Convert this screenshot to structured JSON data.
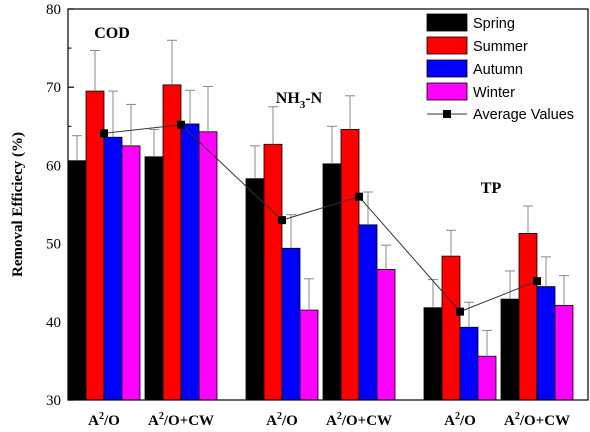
{
  "chart_data": {
    "type": "bar",
    "ylabel": "Removal Efficiecy (%)",
    "ylim": [
      30,
      80
    ],
    "yticks": [
      "30",
      "40",
      "50",
      "60",
      "70",
      "80"
    ],
    "grid": false,
    "legend_position": "top-right",
    "groups": [
      {
        "label": "COD",
        "label_sub": "",
        "label_suffix": ""
      },
      {
        "label": "NH",
        "label_sub": "3",
        "label_suffix": "-N"
      },
      {
        "label": "TP",
        "label_sub": "",
        "label_suffix": ""
      }
    ],
    "categories": [
      {
        "base": "A",
        "sup": "2",
        "suffix": "/O"
      },
      {
        "base": "A",
        "sup": "2",
        "suffix": "/O+CW"
      },
      {
        "base": "A",
        "sup": "2",
        "suffix": "/O"
      },
      {
        "base": "A",
        "sup": "2",
        "suffix": "/O+CW"
      },
      {
        "base": "A",
        "sup": "2",
        "suffix": "/O"
      },
      {
        "base": "A",
        "sup": "2",
        "suffix": "/O+CW"
      }
    ],
    "series": [
      {
        "name": "Spring",
        "color": "#000000",
        "values": [
          60.6,
          61.1,
          58.3,
          60.2,
          41.8,
          42.9
        ],
        "errors": [
          3.2,
          3.5,
          4.2,
          4.8,
          3.6,
          3.6
        ]
      },
      {
        "name": "Summer",
        "color": "#ff0000",
        "values": [
          69.5,
          70.3,
          62.7,
          64.6,
          48.4,
          51.3
        ],
        "errors": [
          5.2,
          5.7,
          4.8,
          4.3,
          3.3,
          3.5
        ]
      },
      {
        "name": "Autumn",
        "color": "#0000ff",
        "values": [
          63.6,
          65.3,
          49.4,
          52.4,
          39.3,
          44.5
        ],
        "errors": [
          5.9,
          4.3,
          4.3,
          4.2,
          3.2,
          3.8
        ]
      },
      {
        "name": "Winter",
        "color": "#ff00ff",
        "values": [
          62.5,
          64.3,
          41.5,
          46.7,
          35.6,
          42.1
        ],
        "errors": [
          5.3,
          5.8,
          4.0,
          3.1,
          3.3,
          3.8
        ]
      }
    ],
    "average": {
      "name": "Average Values",
      "color": "#000000",
      "values": [
        64.1,
        65.2,
        53.0,
        56.0,
        41.3,
        45.2
      ]
    }
  }
}
